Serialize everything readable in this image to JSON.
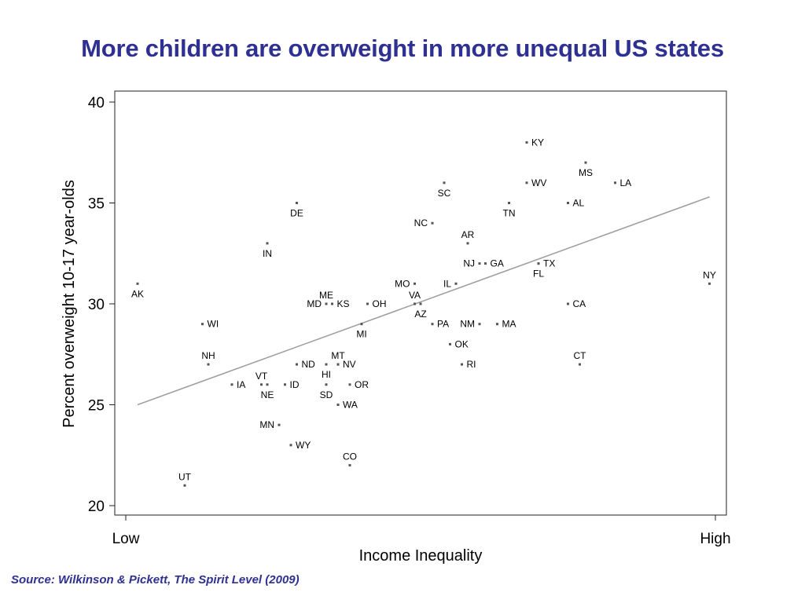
{
  "title": "More children are overweight in more unequal US states",
  "source": "Source: Wilkinson & Pickett, The Spirit Level (2009)",
  "chart_data": {
    "type": "scatter",
    "xlabel": "Income Inequality",
    "ylabel": "Percent overweight 10-17 year-olds",
    "x_tick_labels": [
      "Low",
      "High"
    ],
    "xlim": [
      0,
      100
    ],
    "ylim": [
      20,
      40
    ],
    "yticks": [
      20,
      25,
      30,
      35,
      40
    ],
    "grid": false,
    "legend": "none",
    "point_color": "#555555",
    "trend_color": "#a0a0a0",
    "trendline": {
      "x": [
        2,
        99
      ],
      "y": [
        25,
        35.3
      ]
    },
    "points": [
      {
        "label": "AK",
        "x": 2,
        "y": 31,
        "pos": "below"
      },
      {
        "label": "UT",
        "x": 10,
        "y": 21,
        "pos": "above"
      },
      {
        "label": "WI",
        "x": 13,
        "y": 29,
        "pos": "right"
      },
      {
        "label": "NH",
        "x": 14,
        "y": 27,
        "pos": "above"
      },
      {
        "label": "IA",
        "x": 18,
        "y": 26,
        "pos": "right"
      },
      {
        "label": "VT",
        "x": 23,
        "y": 26,
        "pos": "above"
      },
      {
        "label": "NE",
        "x": 24,
        "y": 26,
        "pos": "below"
      },
      {
        "label": "IN",
        "x": 24,
        "y": 33,
        "pos": "below"
      },
      {
        "label": "MN",
        "x": 26,
        "y": 24,
        "pos": "left"
      },
      {
        "label": "ID",
        "x": 27,
        "y": 26,
        "pos": "right"
      },
      {
        "label": "WY",
        "x": 28,
        "y": 23,
        "pos": "right"
      },
      {
        "label": "DE",
        "x": 29,
        "y": 35,
        "pos": "below"
      },
      {
        "label": "ND",
        "x": 29,
        "y": 27,
        "pos": "right"
      },
      {
        "label": "MD",
        "x": 34,
        "y": 30,
        "pos": "left"
      },
      {
        "label": "ME",
        "x": 34,
        "y": 30,
        "pos": "above"
      },
      {
        "label": "HI",
        "x": 34,
        "y": 27,
        "pos": "below"
      },
      {
        "label": "SD",
        "x": 34,
        "y": 26,
        "pos": "below"
      },
      {
        "label": "KS",
        "x": 35,
        "y": 30,
        "pos": "right"
      },
      {
        "label": "MT",
        "x": 36,
        "y": 27,
        "pos": "above"
      },
      {
        "label": "NV",
        "x": 36,
        "y": 27,
        "pos": "right"
      },
      {
        "label": "WA",
        "x": 36,
        "y": 25,
        "pos": "right"
      },
      {
        "label": "MI",
        "x": 40,
        "y": 29,
        "pos": "below"
      },
      {
        "label": "OH",
        "x": 41,
        "y": 30,
        "pos": "right"
      },
      {
        "label": "OR",
        "x": 38,
        "y": 26,
        "pos": "right"
      },
      {
        "label": "CO",
        "x": 38,
        "y": 22,
        "pos": "above"
      },
      {
        "label": "MO",
        "x": 49,
        "y": 31,
        "pos": "left"
      },
      {
        "label": "VA",
        "x": 49,
        "y": 30,
        "pos": "above"
      },
      {
        "label": "AZ",
        "x": 50,
        "y": 30,
        "pos": "below"
      },
      {
        "label": "NC",
        "x": 52,
        "y": 34,
        "pos": "left"
      },
      {
        "label": "PA",
        "x": 52,
        "y": 29,
        "pos": "right"
      },
      {
        "label": "SC",
        "x": 54,
        "y": 36,
        "pos": "below"
      },
      {
        "label": "IL",
        "x": 56,
        "y": 31,
        "pos": "left"
      },
      {
        "label": "OK",
        "x": 55,
        "y": 28,
        "pos": "right"
      },
      {
        "label": "AR",
        "x": 58,
        "y": 33,
        "pos": "above"
      },
      {
        "label": "RI",
        "x": 57,
        "y": 27,
        "pos": "right"
      },
      {
        "label": "NJ",
        "x": 60,
        "y": 32,
        "pos": "left"
      },
      {
        "label": "NM",
        "x": 60,
        "y": 29,
        "pos": "left"
      },
      {
        "label": "GA",
        "x": 61,
        "y": 32,
        "pos": "right"
      },
      {
        "label": "MA",
        "x": 63,
        "y": 29,
        "pos": "right"
      },
      {
        "label": "TN",
        "x": 65,
        "y": 35,
        "pos": "below"
      },
      {
        "label": "KY",
        "x": 68,
        "y": 38,
        "pos": "right"
      },
      {
        "label": "WV",
        "x": 68,
        "y": 36,
        "pos": "right"
      },
      {
        "label": "TX",
        "x": 70,
        "y": 32,
        "pos": "right"
      },
      {
        "label": "FL",
        "x": 70,
        "y": 32,
        "pos": "below"
      },
      {
        "label": "AL",
        "x": 75,
        "y": 35,
        "pos": "right"
      },
      {
        "label": "CA",
        "x": 75,
        "y": 30,
        "pos": "right"
      },
      {
        "label": "CT",
        "x": 77,
        "y": 27,
        "pos": "above"
      },
      {
        "label": "MS",
        "x": 78,
        "y": 37,
        "pos": "below"
      },
      {
        "label": "LA",
        "x": 83,
        "y": 36,
        "pos": "right"
      },
      {
        "label": "NY",
        "x": 99,
        "y": 31,
        "pos": "above"
      }
    ]
  }
}
